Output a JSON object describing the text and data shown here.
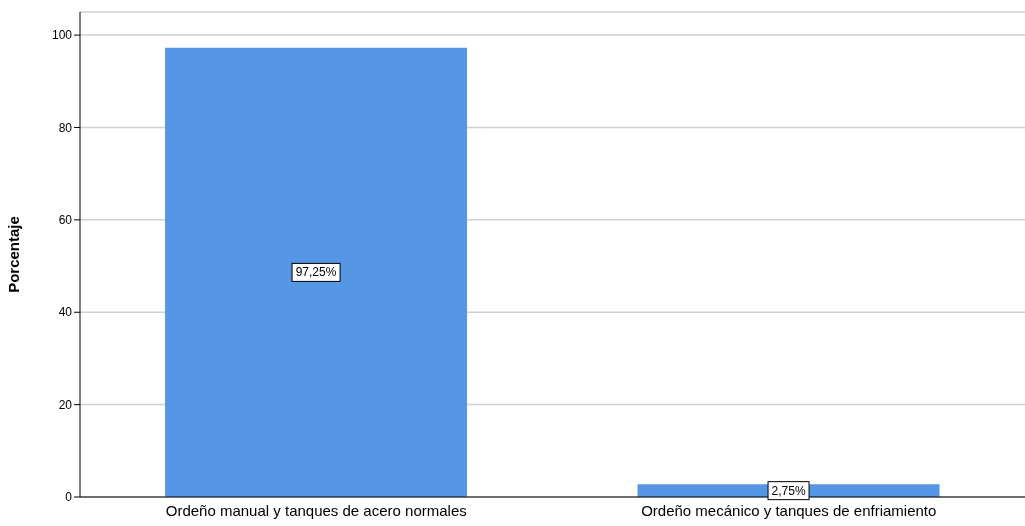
{
  "chart_data": {
    "type": "bar",
    "ylabel": "Porcentaje",
    "categories": [
      "Ordeño manual y tanques de acero normales",
      "Ordeño mecánico y tanques de enfriamiento"
    ],
    "values": [
      97.25,
      2.75
    ],
    "color": "#5596e5",
    "value_labels": [
      "97,25%",
      "2,75%"
    ],
    "ylim": [
      0,
      105
    ],
    "yticks": [
      0,
      20,
      40,
      60,
      80,
      100
    ],
    "grid": "y"
  }
}
